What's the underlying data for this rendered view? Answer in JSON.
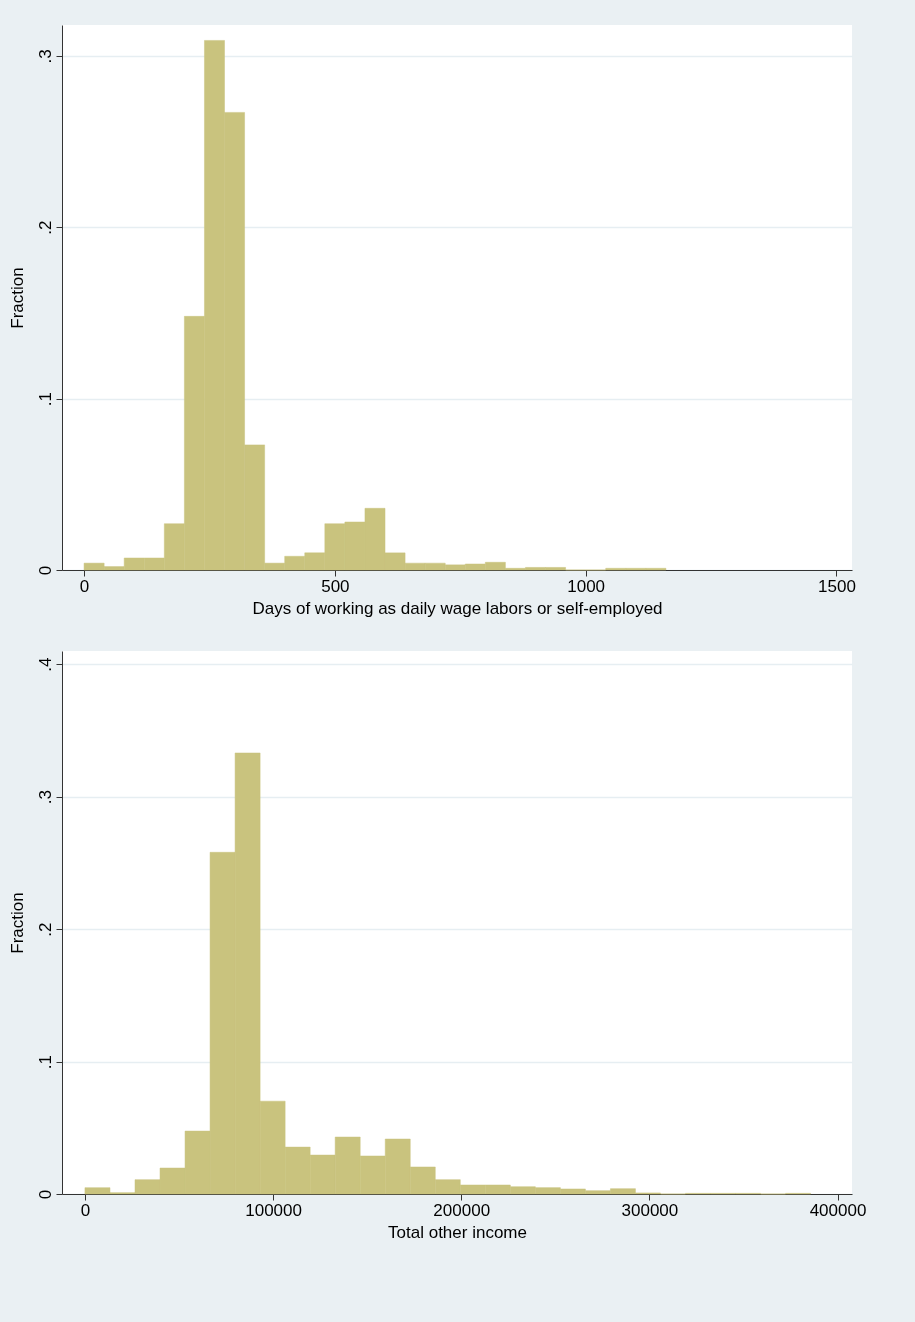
{
  "chart_data": [
    {
      "type": "histogram",
      "xlabel": "Days of working as daily wage labors or self-employed",
      "ylabel": "Fraction",
      "color": "#c9c37e",
      "bins": [
        0,
        40,
        80,
        120,
        160,
        200,
        240,
        280,
        320,
        360,
        400,
        440,
        480,
        520,
        560,
        600,
        640,
        680,
        720,
        760,
        800,
        840,
        880,
        920,
        960,
        1000,
        1040,
        1080,
        1120,
        1160
      ],
      "values": [
        0.004,
        0.002,
        0.007,
        0.007,
        0.027,
        0.148,
        0.309,
        0.267,
        0.073,
        0.004,
        0.008,
        0.01,
        0.027,
        0.028,
        0.036,
        0.01,
        0.004,
        0.004,
        0.003,
        0.0035,
        0.0045,
        0.001,
        0.0015,
        0.0015,
        0,
        0,
        0.001,
        0.001,
        0.001
      ],
      "xlim": [
        -44,
        1531
      ],
      "xticks": [
        0,
        500,
        1000,
        1500
      ],
      "ylim": [
        0,
        0.318
      ],
      "yticks": [
        0,
        {
          "value": 0.1,
          "label": ".1"
        },
        {
          "value": 0.2,
          "label": ".2"
        },
        {
          "value": 0.3,
          "label": ".3"
        }
      ],
      "grid": "y"
    },
    {
      "type": "histogram",
      "xlabel": "Total other income",
      "ylabel": "Fraction",
      "color": "#c9c37e",
      "bins": [
        0,
        13300,
        26600,
        39900,
        53200,
        66500,
        79800,
        93100,
        106400,
        119700,
        133000,
        146300,
        159600,
        172900,
        186200,
        199500,
        212800,
        226100,
        239400,
        252700,
        266000,
        279300,
        292600,
        305900,
        319200,
        332500,
        345800,
        359100,
        372400,
        385700
      ],
      "values": [
        0.0048,
        0.001,
        0.0108,
        0.0196,
        0.0475,
        0.258,
        0.333,
        0.0701,
        0.0354,
        0.0294,
        0.043,
        0.0287,
        0.0415,
        0.0204,
        0.0108,
        0.0068,
        0.0068,
        0.0055,
        0.0048,
        0.0038,
        0.0025,
        0.004,
        0.0008,
        0,
        0.0005,
        0.0005,
        0.0005,
        0,
        0.0005
      ],
      "xlim": [
        -12200,
        407700
      ],
      "xticks": [
        0,
        100000,
        200000,
        300000,
        400000
      ],
      "ylim": [
        0,
        0.41
      ],
      "yticks": [
        0,
        {
          "value": 0.1,
          "label": ".1"
        },
        {
          "value": 0.2,
          "label": ".2"
        },
        {
          "value": 0.3,
          "label": ".3"
        },
        {
          "value": 0.4,
          "label": ".4"
        }
      ],
      "grid": "y"
    }
  ]
}
